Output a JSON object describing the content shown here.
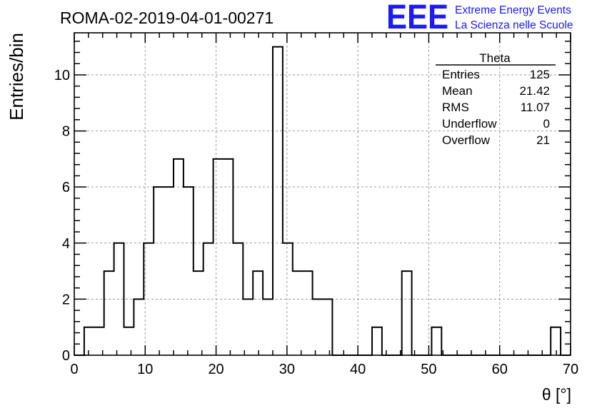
{
  "title": "ROMA-02-2019-04-01-00271",
  "logo": {
    "mark": "EEE",
    "line1": "Extreme Energy Events",
    "line2": "La Scienza nelle Scuole",
    "color": "#1a1aff"
  },
  "stats": {
    "name": "Theta",
    "rows": [
      {
        "label": "Entries",
        "value": "125"
      },
      {
        "label": "Mean",
        "value": "21.42"
      },
      {
        "label": "RMS",
        "value": "11.07"
      },
      {
        "label": "Underflow",
        "value": "0"
      },
      {
        "label": "Overflow",
        "value": "21"
      }
    ]
  },
  "chart_data": {
    "type": "histogram",
    "xlabel": "θ [°]",
    "ylabel": "Entries/bin",
    "xlim": [
      0,
      70
    ],
    "ylim": [
      0,
      11.5
    ],
    "x_ticks": [
      0,
      10,
      20,
      30,
      40,
      50,
      60,
      70
    ],
    "y_ticks": [
      0,
      2,
      4,
      6,
      8,
      10
    ],
    "grid": true,
    "bin_width": 1.4,
    "x_start": 0,
    "counts": [
      0,
      1,
      1,
      3,
      4,
      1,
      2,
      4,
      6,
      6,
      7,
      6,
      3,
      4,
      7,
      7,
      4,
      2,
      3,
      2,
      11,
      4,
      3,
      3,
      2,
      2,
      0,
      0,
      0,
      0,
      1,
      0,
      0,
      3,
      0,
      0,
      1,
      0,
      0,
      0,
      0,
      0,
      0,
      0,
      0,
      0,
      0,
      0,
      1,
      0
    ]
  }
}
